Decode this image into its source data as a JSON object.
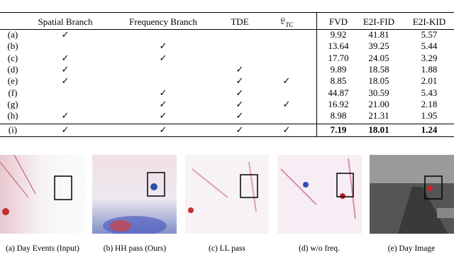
{
  "table": {
    "columns": [
      "Spatial Branch",
      "Frequency Branch",
      "TDE",
      {
        "symbol": "𝔏",
        "sub": "TC"
      },
      "FVD",
      "E2I-FID",
      "E2I-KID"
    ],
    "rows": [
      {
        "label": "(a)",
        "cells": [
          "✓",
          null,
          null,
          null,
          "9.92",
          "41.81",
          "5.57"
        ]
      },
      {
        "label": "(b)",
        "cells": [
          null,
          "✓",
          null,
          null,
          "13.64",
          "39.25",
          "5.44"
        ]
      },
      {
        "label": "(c)",
        "cells": [
          "✓",
          "✓",
          null,
          null,
          "17.70",
          "24.05",
          "3.29"
        ]
      },
      {
        "label": "(d)",
        "cells": [
          "✓",
          null,
          "✓",
          null,
          "9.89",
          "18.58",
          "1.88"
        ]
      },
      {
        "label": "(e)",
        "cells": [
          "✓",
          null,
          "✓",
          "✓",
          "8.85",
          "18.05",
          "2.01"
        ]
      },
      {
        "label": "(f)",
        "cells": [
          null,
          "✓",
          "✓",
          null,
          "44.87",
          "30.59",
          "5.43"
        ]
      },
      {
        "label": "(g)",
        "cells": [
          null,
          "✓",
          "✓",
          "✓",
          "16.92",
          "21.00",
          "2.18"
        ]
      },
      {
        "label": "(h)",
        "cells": [
          "✓",
          "✓",
          "✓",
          null,
          "8.98",
          "21.31",
          "1.95"
        ]
      },
      {
        "label": "(i)",
        "cells": [
          "✓",
          "✓",
          "✓",
          "✓",
          "7.19",
          "18.01",
          "1.24"
        ]
      }
    ]
  },
  "figures": [
    {
      "caption": "(a) Day Events (Input)"
    },
    {
      "caption": "(b) HH pass (Ours)"
    },
    {
      "caption": "(c) LL pass"
    },
    {
      "caption": "(d) w/o freq."
    },
    {
      "caption": "(e) Day Image"
    }
  ]
}
